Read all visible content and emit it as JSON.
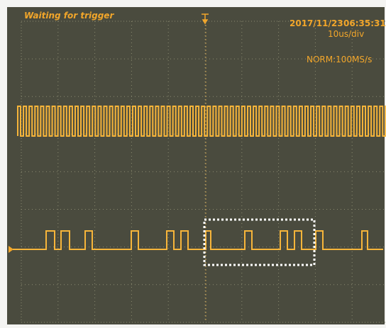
{
  "status": "Waiting for trigger",
  "date": "2017/11/23",
  "time": "06:35:31",
  "timebase": "10us/div",
  "mode": "NORM:100MS/s"
}
